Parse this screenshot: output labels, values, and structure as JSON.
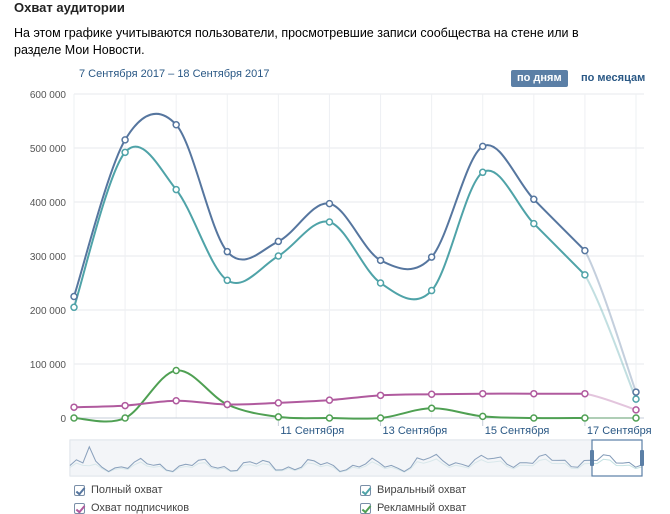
{
  "header": {
    "title": "Охват аудитории",
    "description": "На этом графике учитываются пользователи, просмотревшие записи сообщества на стене или в разделе Мои Новости.",
    "date_range": "7 Сентября 2017 – 18 Сентября 2017",
    "btn_days": "по дням",
    "btn_months": "по месяцам"
  },
  "legend": {
    "full": "Полный охват",
    "viral": "Виральный охват",
    "subscribers": "Охват подписчиков",
    "ads": "Рекламный охват"
  },
  "colors": {
    "full": "#56769f",
    "viral": "#4fa3a8",
    "subscribers": "#b05a9e",
    "ads": "#4fa053"
  },
  "chart_data": {
    "type": "line",
    "x": [
      "7 Сентября",
      "8 Сентября",
      "9 Сентября",
      "10 Сентября",
      "11 Сентября",
      "12 Сентября",
      "13 Сентября",
      "14 Сентября",
      "15 Сентября",
      "16 Сентября",
      "17 Сентября",
      "18 Сентября"
    ],
    "xticks": [
      "11 Сентября",
      "13 Сентября",
      "15 Сентября",
      "17 Сентября"
    ],
    "yticks": [
      "0",
      "100 000",
      "200 000",
      "300 000",
      "400 000",
      "500 000",
      "600 000"
    ],
    "ylim": [
      0,
      600000
    ],
    "grid": true,
    "legend_position": "bottom",
    "series": [
      {
        "name": "Полный охват",
        "key": "full",
        "values": [
          225000,
          515000,
          543000,
          308000,
          327000,
          397000,
          292000,
          298000,
          503000,
          405000,
          310000,
          48000
        ]
      },
      {
        "name": "Виральный охват",
        "key": "viral",
        "values": [
          205000,
          492000,
          423000,
          255000,
          300000,
          363000,
          250000,
          236000,
          455000,
          360000,
          265000,
          35000
        ]
      },
      {
        "name": "Охват подписчиков",
        "key": "subscribers",
        "values": [
          20000,
          23000,
          32000,
          25000,
          28000,
          33000,
          42000,
          44000,
          45000,
          45000,
          45000,
          15000
        ]
      },
      {
        "name": "Рекламный охват",
        "key": "ads",
        "values": [
          0,
          0,
          88000,
          25000,
          2000,
          0,
          0,
          18000,
          3000,
          0,
          0,
          0
        ]
      }
    ]
  }
}
